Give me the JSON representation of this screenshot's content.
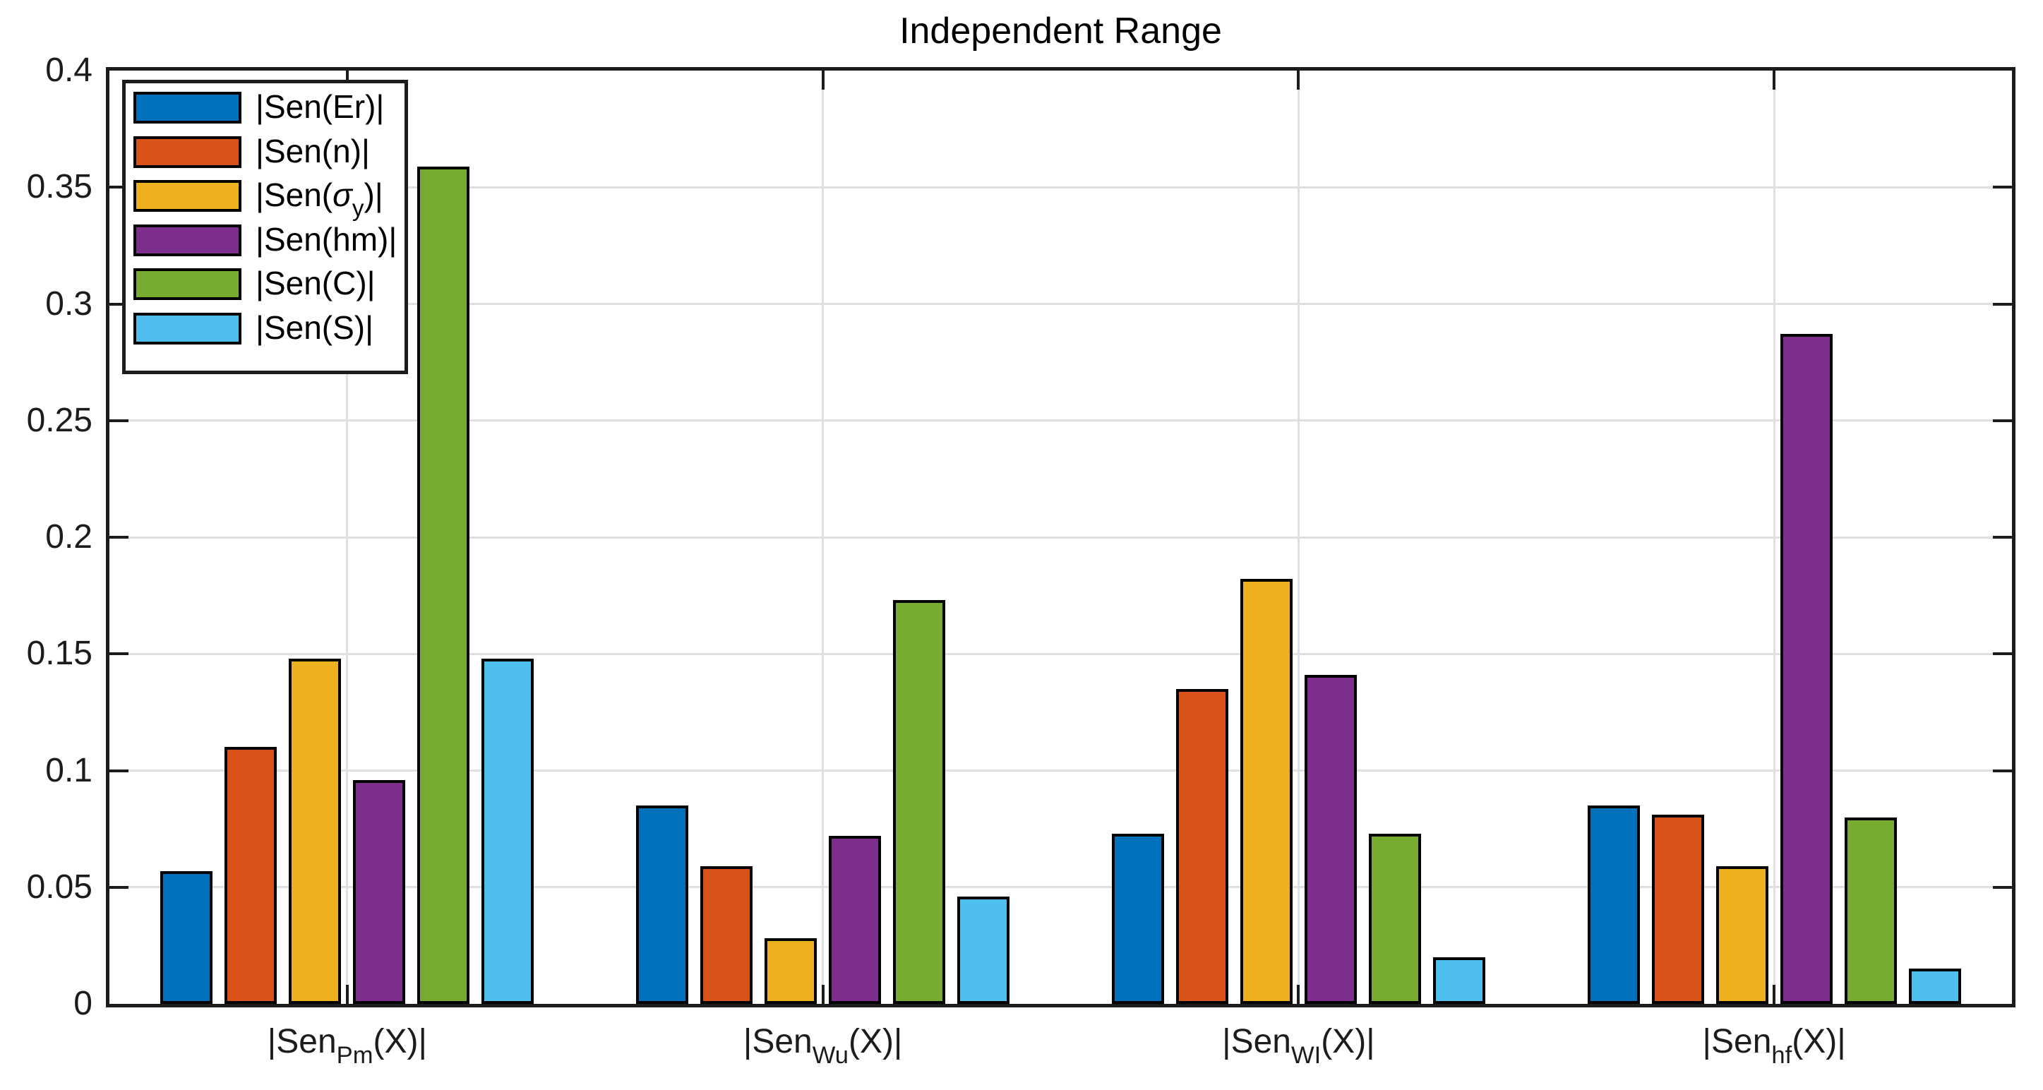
{
  "title": "Independent Range",
  "axes": {
    "ylim": [
      0,
      0.4
    ],
    "yticks": [
      0,
      0.05,
      0.1,
      0.15,
      0.2,
      0.25,
      0.3,
      0.35,
      0.4
    ],
    "ytick_labels": [
      "0",
      "0.05",
      "0.1",
      "0.15",
      "0.2",
      "0.25",
      "0.3",
      "0.35",
      "0.4"
    ],
    "grid": "both",
    "grid_color": "#e0e0e0",
    "axis_color": "#1c1c1c"
  },
  "chart_data": {
    "type": "bar",
    "title": "Independent Range",
    "xlabel": "",
    "ylabel": "",
    "ylim": [
      0,
      0.4
    ],
    "grid": "on",
    "legend_position": "top-left",
    "categories": [
      "|Sen_Pm(X)|",
      "|Sen_Wu(X)|",
      "|Sen_WI(X)|",
      "|Sen_hf(X)|"
    ],
    "category_segments": [
      [
        {
          "t": "|Sen",
          "s": "n"
        },
        {
          "t": "Pm",
          "s": "sub"
        },
        {
          "t": "(X)|",
          "s": "n"
        }
      ],
      [
        {
          "t": "|Sen",
          "s": "n"
        },
        {
          "t": "Wu",
          "s": "sub"
        },
        {
          "t": "(X)|",
          "s": "n"
        }
      ],
      [
        {
          "t": "|Sen",
          "s": "n"
        },
        {
          "t": "WI",
          "s": "sub"
        },
        {
          "t": "(X)|",
          "s": "n"
        }
      ],
      [
        {
          "t": "|Sen",
          "s": "n"
        },
        {
          "t": "hf",
          "s": "sub"
        },
        {
          "t": "(X)|",
          "s": "n"
        }
      ]
    ],
    "series": [
      {
        "name": "|Sen(Er)|",
        "color": "#0072BD",
        "segments": [
          {
            "t": "|Sen(Er)|",
            "s": "n"
          }
        ],
        "values": [
          0.057,
          0.085,
          0.073,
          0.085
        ]
      },
      {
        "name": "|Sen(n)|",
        "color": "#D95319",
        "segments": [
          {
            "t": "|Sen(n)|",
            "s": "n"
          }
        ],
        "values": [
          0.11,
          0.059,
          0.135,
          0.081
        ]
      },
      {
        "name": "|Sen(σy)|",
        "color": "#EDB120",
        "segments": [
          {
            "t": "|Sen(",
            "s": "n"
          },
          {
            "t": "σ",
            "s": "i"
          },
          {
            "t": "y",
            "s": "sub"
          },
          {
            "t": ")|",
            "s": "n"
          }
        ],
        "values": [
          0.148,
          0.028,
          0.182,
          0.059
        ]
      },
      {
        "name": "|Sen(hm)|",
        "color": "#7E2F8E",
        "segments": [
          {
            "t": "|Sen(hm)|",
            "s": "n"
          }
        ],
        "values": [
          0.096,
          0.072,
          0.141,
          0.287
        ]
      },
      {
        "name": "|Sen(C)|",
        "color": "#77AC30",
        "segments": [
          {
            "t": "|Sen(C)|",
            "s": "n"
          }
        ],
        "values": [
          0.359,
          0.173,
          0.073,
          0.08
        ]
      },
      {
        "name": "|Sen(S)|",
        "color": "#4DBEEE",
        "segments": [
          {
            "t": "|Sen(S)|",
            "s": "n"
          }
        ],
        "values": [
          0.148,
          0.046,
          0.02,
          0.015
        ]
      }
    ]
  }
}
